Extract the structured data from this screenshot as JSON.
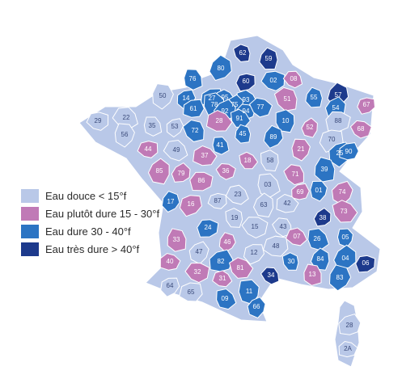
{
  "colors": {
    "douce": "#b9c8e8",
    "plutot_dure": "#c07ab6",
    "dure": "#2c74c3",
    "tres_dure": "#1d3a8c"
  },
  "legend": [
    {
      "key": "douce",
      "label": "Eau douce < 15°f"
    },
    {
      "key": "plutot_dure",
      "label": "Eau plutôt dure 15 - 30°f"
    },
    {
      "key": "dure",
      "label": "Eau dure 30 - 40°f"
    },
    {
      "key": "tres_dure",
      "label": "Eau très dure > 40°f"
    }
  ],
  "departments": [
    {
      "code": "62",
      "cls": "tres_dure"
    },
    {
      "code": "59",
      "cls": "tres_dure"
    },
    {
      "code": "80",
      "cls": "dure"
    },
    {
      "code": "60",
      "cls": "tres_dure"
    },
    {
      "code": "02",
      "cls": "dure"
    },
    {
      "code": "08",
      "cls": "plutot_dure"
    },
    {
      "code": "76",
      "cls": "dure"
    },
    {
      "code": "50",
      "cls": "douce"
    },
    {
      "code": "14",
      "cls": "dure"
    },
    {
      "code": "27",
      "cls": "dure"
    },
    {
      "code": "95",
      "cls": "dure"
    },
    {
      "code": "93",
      "cls": "dure"
    },
    {
      "code": "78",
      "cls": "dure"
    },
    {
      "code": "75",
      "cls": "dure"
    },
    {
      "code": "92",
      "cls": "dure"
    },
    {
      "code": "94",
      "cls": "dure"
    },
    {
      "code": "77",
      "cls": "dure"
    },
    {
      "code": "51",
      "cls": "plutot_dure"
    },
    {
      "code": "55",
      "cls": "dure"
    },
    {
      "code": "57",
      "cls": "tres_dure"
    },
    {
      "code": "67",
      "cls": "plutot_dure"
    },
    {
      "code": "29",
      "cls": "douce"
    },
    {
      "code": "22",
      "cls": "douce"
    },
    {
      "code": "35",
      "cls": "douce"
    },
    {
      "code": "56",
      "cls": "douce"
    },
    {
      "code": "53",
      "cls": "douce"
    },
    {
      "code": "61",
      "cls": "dure"
    },
    {
      "code": "28",
      "cls": "plutot_dure"
    },
    {
      "code": "91",
      "cls": "dure"
    },
    {
      "code": "10",
      "cls": "dure"
    },
    {
      "code": "52",
      "cls": "plutot_dure"
    },
    {
      "code": "54",
      "cls": "dure"
    },
    {
      "code": "88",
      "cls": "douce"
    },
    {
      "code": "68",
      "cls": "plutot_dure"
    },
    {
      "code": "72",
      "cls": "dure"
    },
    {
      "code": "45",
      "cls": "dure"
    },
    {
      "code": "89",
      "cls": "dure"
    },
    {
      "code": "70",
      "cls": "douce"
    },
    {
      "code": "44",
      "cls": "plutot_dure"
    },
    {
      "code": "49",
      "cls": "douce"
    },
    {
      "code": "41",
      "cls": "dure"
    },
    {
      "code": "21",
      "cls": "plutot_dure"
    },
    {
      "code": "25",
      "cls": "dure"
    },
    {
      "code": "90",
      "cls": "dure"
    },
    {
      "code": "37",
      "cls": "plutot_dure"
    },
    {
      "code": "18",
      "cls": "plutot_dure"
    },
    {
      "code": "58",
      "cls": "douce"
    },
    {
      "code": "85",
      "cls": "plutot_dure"
    },
    {
      "code": "79",
      "cls": "plutot_dure"
    },
    {
      "code": "86",
      "cls": "plutot_dure"
    },
    {
      "code": "36",
      "cls": "plutot_dure"
    },
    {
      "code": "71",
      "cls": "plutot_dure"
    },
    {
      "code": "39",
      "cls": "dure"
    },
    {
      "code": "17",
      "cls": "dure"
    },
    {
      "code": "16",
      "cls": "plutot_dure"
    },
    {
      "code": "87",
      "cls": "douce"
    },
    {
      "code": "23",
      "cls": "douce"
    },
    {
      "code": "03",
      "cls": "douce"
    },
    {
      "code": "01",
      "cls": "dure"
    },
    {
      "code": "74",
      "cls": "plutot_dure"
    },
    {
      "code": "69",
      "cls": "plutot_dure"
    },
    {
      "code": "42",
      "cls": "douce"
    },
    {
      "code": "73",
      "cls": "plutot_dure"
    },
    {
      "code": "19",
      "cls": "douce"
    },
    {
      "code": "63",
      "cls": "douce"
    },
    {
      "code": "38",
      "cls": "tres_dure"
    },
    {
      "code": "24",
      "cls": "dure"
    },
    {
      "code": "15",
      "cls": "douce"
    },
    {
      "code": "43",
      "cls": "douce"
    },
    {
      "code": "33",
      "cls": "plutot_dure"
    },
    {
      "code": "46",
      "cls": "plutot_dure"
    },
    {
      "code": "12",
      "cls": "douce"
    },
    {
      "code": "48",
      "cls": "douce"
    },
    {
      "code": "07",
      "cls": "plutot_dure"
    },
    {
      "code": "26",
      "cls": "dure"
    },
    {
      "code": "05",
      "cls": "dure"
    },
    {
      "code": "47",
      "cls": "douce"
    },
    {
      "code": "82",
      "cls": "dure"
    },
    {
      "code": "40",
      "cls": "plutot_dure"
    },
    {
      "code": "81",
      "cls": "plutot_dure"
    },
    {
      "code": "30",
      "cls": "dure"
    },
    {
      "code": "84",
      "cls": "dure"
    },
    {
      "code": "04",
      "cls": "dure"
    },
    {
      "code": "06",
      "cls": "tres_dure"
    },
    {
      "code": "32",
      "cls": "plutot_dure"
    },
    {
      "code": "34",
      "cls": "tres_dure"
    },
    {
      "code": "13",
      "cls": "plutot_dure"
    },
    {
      "code": "83",
      "cls": "dure"
    },
    {
      "code": "64",
      "cls": "douce"
    },
    {
      "code": "65",
      "cls": "douce"
    },
    {
      "code": "31",
      "cls": "plutot_dure"
    },
    {
      "code": "09",
      "cls": "dure"
    },
    {
      "code": "11",
      "cls": "dure"
    },
    {
      "code": "66",
      "cls": "dure"
    },
    {
      "code": "28",
      "cls": "douce",
      "id": "2B"
    },
    {
      "code": "2A",
      "cls": "douce"
    }
  ]
}
